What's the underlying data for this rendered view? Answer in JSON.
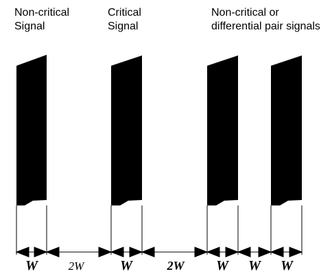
{
  "labels": {
    "noncritical_1": "Non-critical",
    "noncritical_2": "Signal",
    "critical_1": "Critical",
    "critical_2": "Signal",
    "group_1": "Non-critical or",
    "group_2": "differential pair signals"
  },
  "dimensions": {
    "w1": "W",
    "gap1": "2W",
    "w2": "W",
    "gap2": "2W",
    "w3": "W",
    "gap3": "W",
    "w4": "W"
  },
  "colors": {
    "trace": "#000000",
    "line": "#000000",
    "background": "#ffffff"
  }
}
